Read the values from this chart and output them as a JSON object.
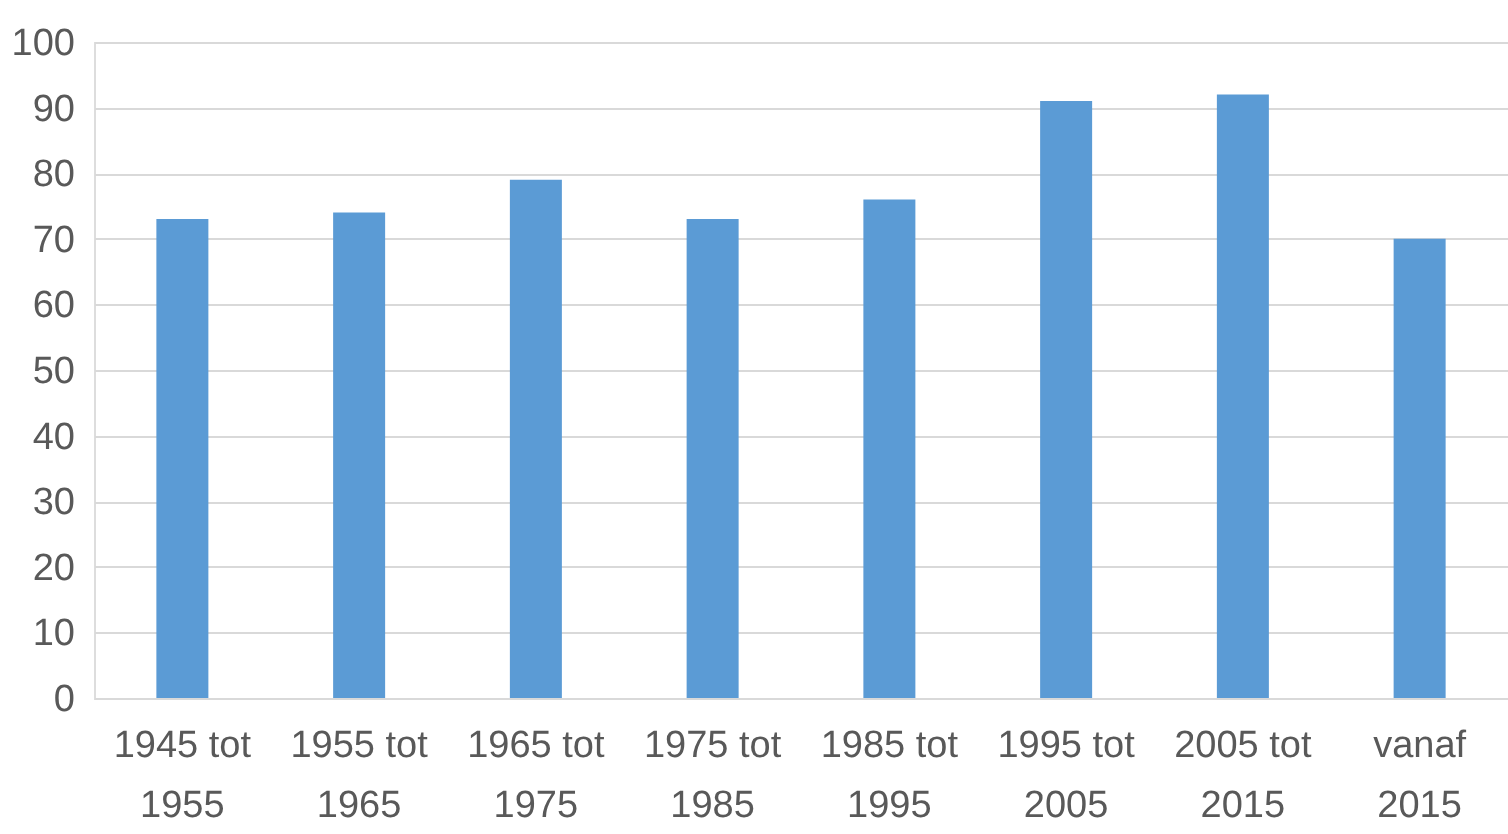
{
  "chart_data": {
    "type": "bar",
    "categories": [
      "1945 tot 1955",
      "1955 tot 1965",
      "1965 tot 1975",
      "1975 tot 1985",
      "1985 tot 1995",
      "1995 tot 2005",
      "2005 tot 2015",
      "vanaf 2015"
    ],
    "values": [
      73,
      74,
      79,
      73,
      76,
      91,
      92,
      70
    ],
    "color": "#5b9bd5",
    "ylim": [
      0,
      100
    ],
    "yticks": [
      0,
      10,
      20,
      30,
      40,
      50,
      60,
      70,
      80,
      90,
      100
    ],
    "grid": "y",
    "legend": false
  }
}
